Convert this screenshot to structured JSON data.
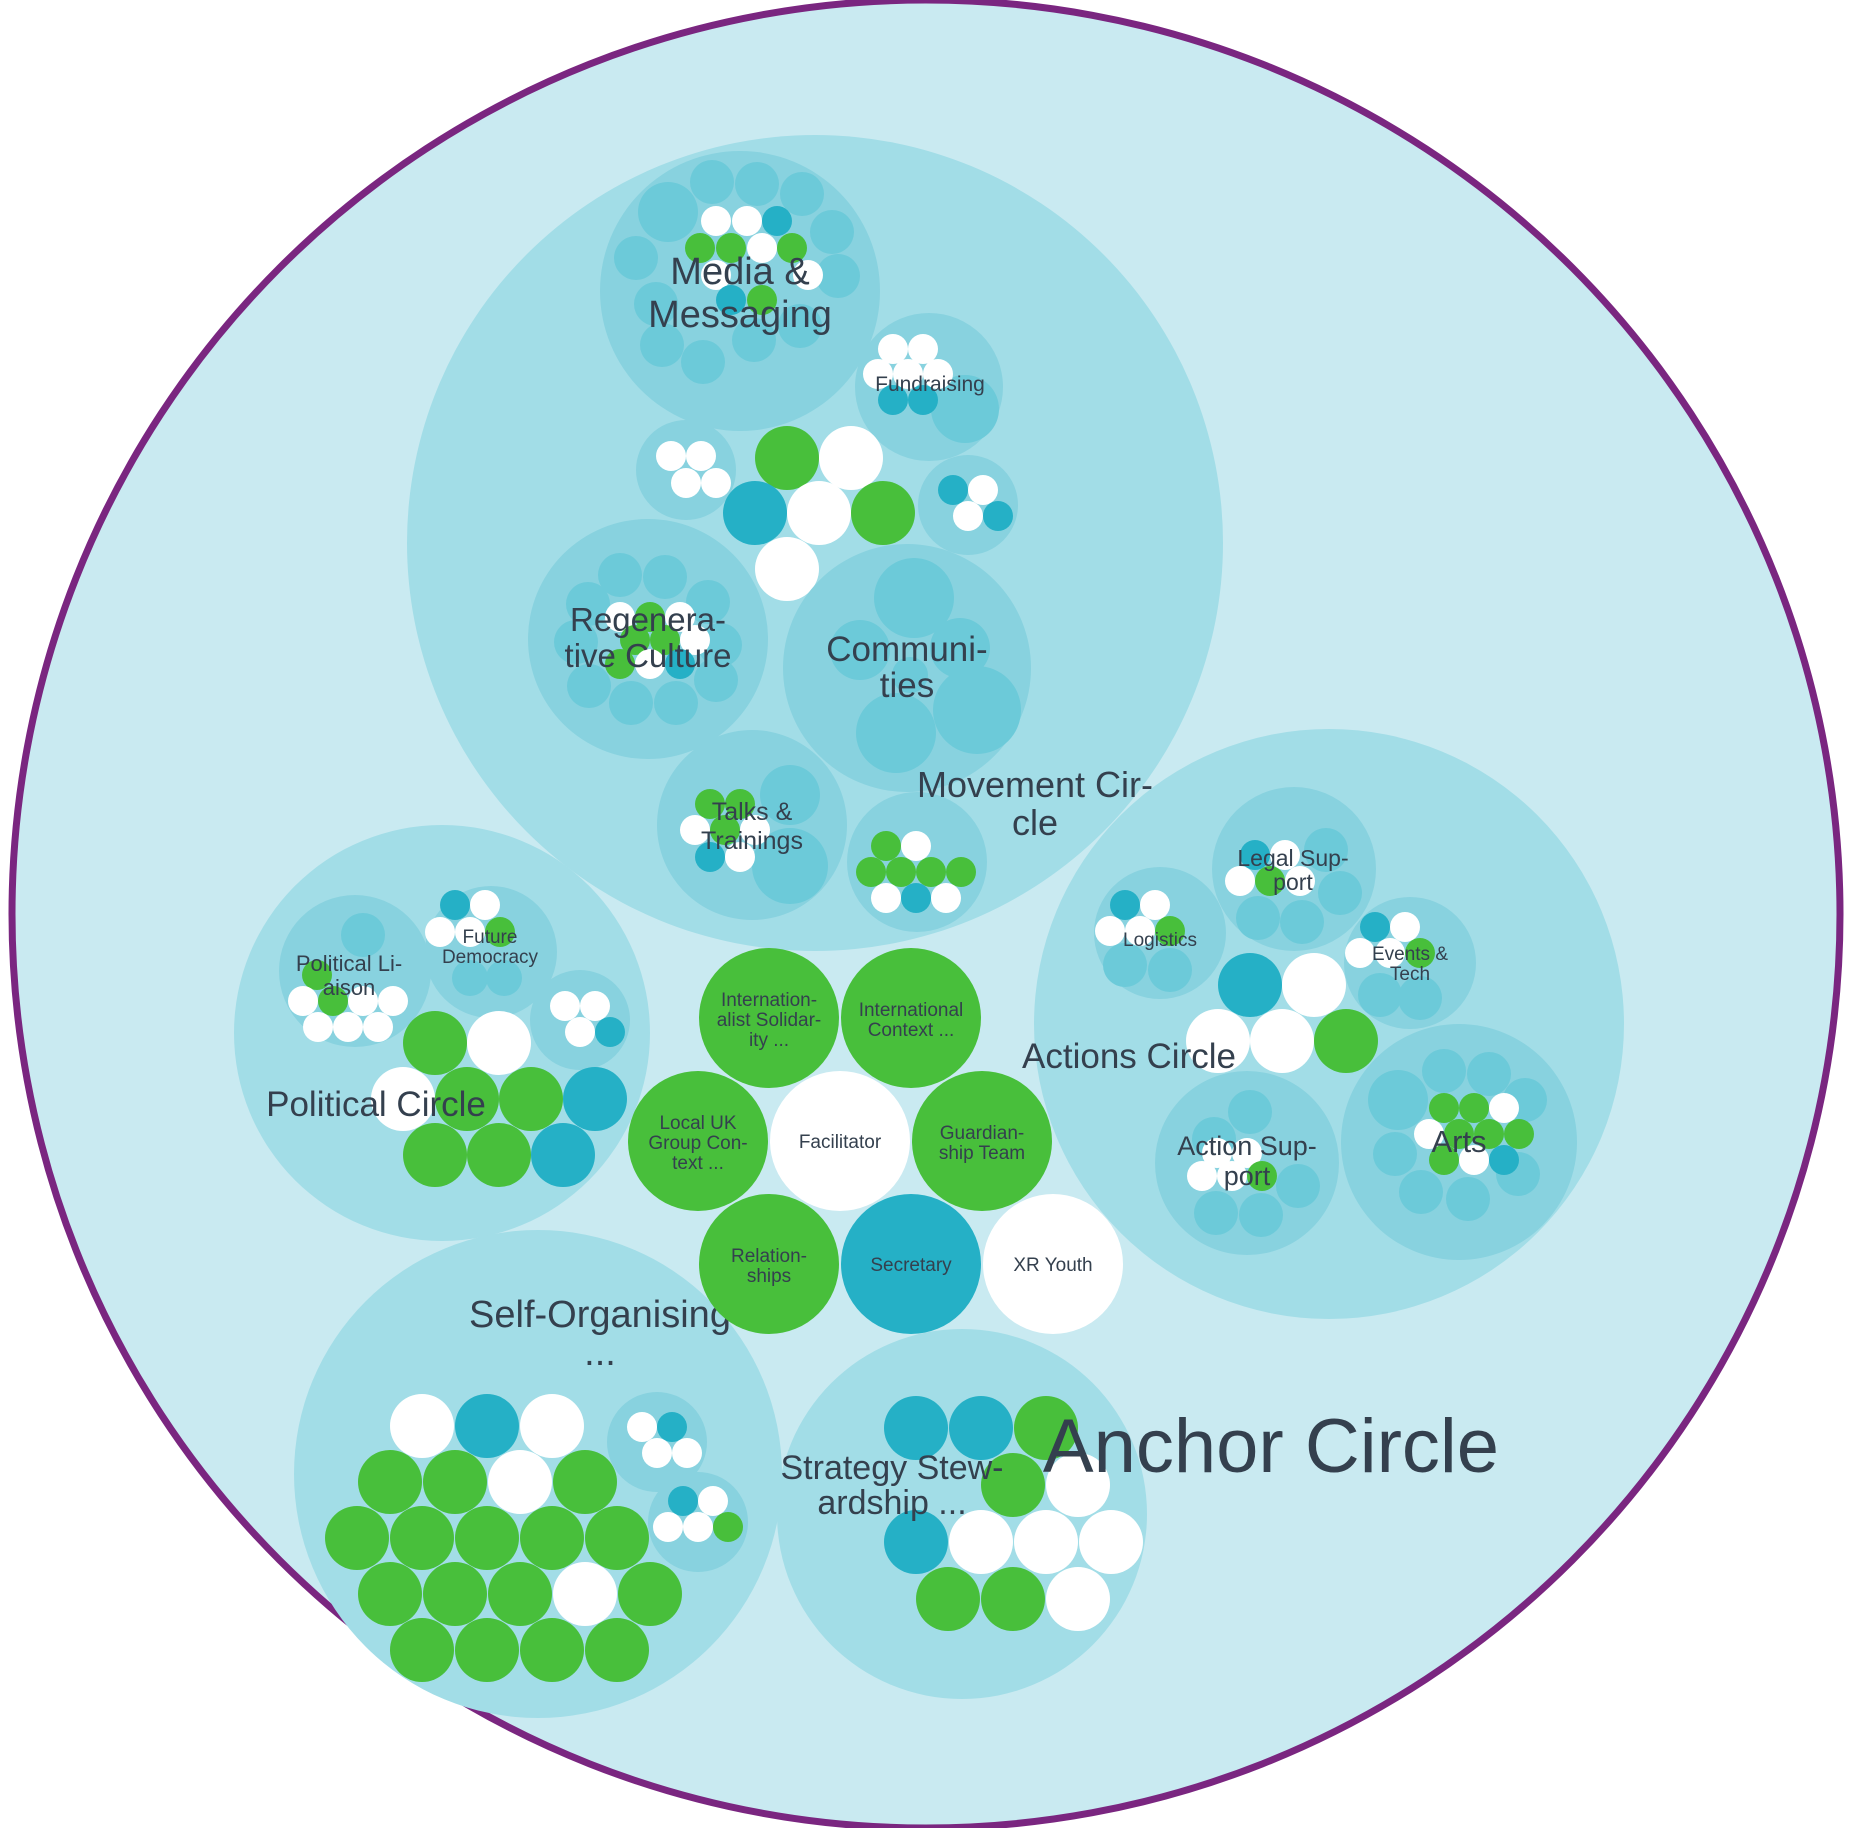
{
  "colors": {
    "background": "#c9eaf1",
    "border": "#7a2680",
    "circle_level1": "#a2dde7",
    "circle_level2": "#88d2df",
    "circle_level3": "#6ccad9",
    "role_green": "#48bf3b",
    "role_teal": "#25b0c6",
    "role_white": "#ffffff",
    "text": "#34404e"
  },
  "anchor": {
    "label": "Anchor Circle"
  },
  "circles": {
    "movement": {
      "label_line1": "Movement Cir-",
      "label_line2": "cle"
    },
    "media": {
      "label_line1": "Media &",
      "label_line2": "Messaging"
    },
    "fundraising": {
      "label": "Fundraising"
    },
    "regenerative": {
      "label_line1": "Regenera-",
      "label_line2": "tive Culture"
    },
    "communities": {
      "label_line1": "Communi-",
      "label_line2": "ties"
    },
    "talks": {
      "label_line1": "Talks &",
      "label_line2": "Trainings"
    },
    "political": {
      "label": "Political Circle"
    },
    "political_liaison": {
      "label_line1": "Political Li-",
      "label_line2": "aison"
    },
    "future_democracy": {
      "label_line1": "Future",
      "label_line2": "Democracy"
    },
    "actions": {
      "label": "Actions Circle"
    },
    "legal_support": {
      "label_line1": "Legal Sup-",
      "label_line2": "port"
    },
    "logistics": {
      "label": "Logistics"
    },
    "events_tech": {
      "label_line1": "Events &",
      "label_line2": "Tech"
    },
    "action_support": {
      "label_line1": "Action Sup-",
      "label_line2": "port"
    },
    "arts": {
      "label": "Arts"
    },
    "self_organising": {
      "label_line1": "Self-Organising",
      "label_line2": "..."
    },
    "strategy": {
      "label_line1": "Strategy Stew-",
      "label_line2": "ardship ..."
    }
  },
  "roles": {
    "internationalist": {
      "line1": "Internation-",
      "line2": "alist Solidar-",
      "line3": "ity ..."
    },
    "international_context": {
      "line1": "International",
      "line2": "Context ..."
    },
    "local_uk": {
      "line1": "Local UK",
      "line2": "Group Con-",
      "line3": "text ..."
    },
    "facilitator": {
      "label": "Facilitator"
    },
    "guardianship": {
      "line1": "Guardian-",
      "line2": "ship Team"
    },
    "relationships": {
      "line1": "Relation-",
      "line2": "ships"
    },
    "secretary": {
      "label": "Secretary"
    },
    "xr_youth": {
      "label": "XR Youth"
    }
  }
}
